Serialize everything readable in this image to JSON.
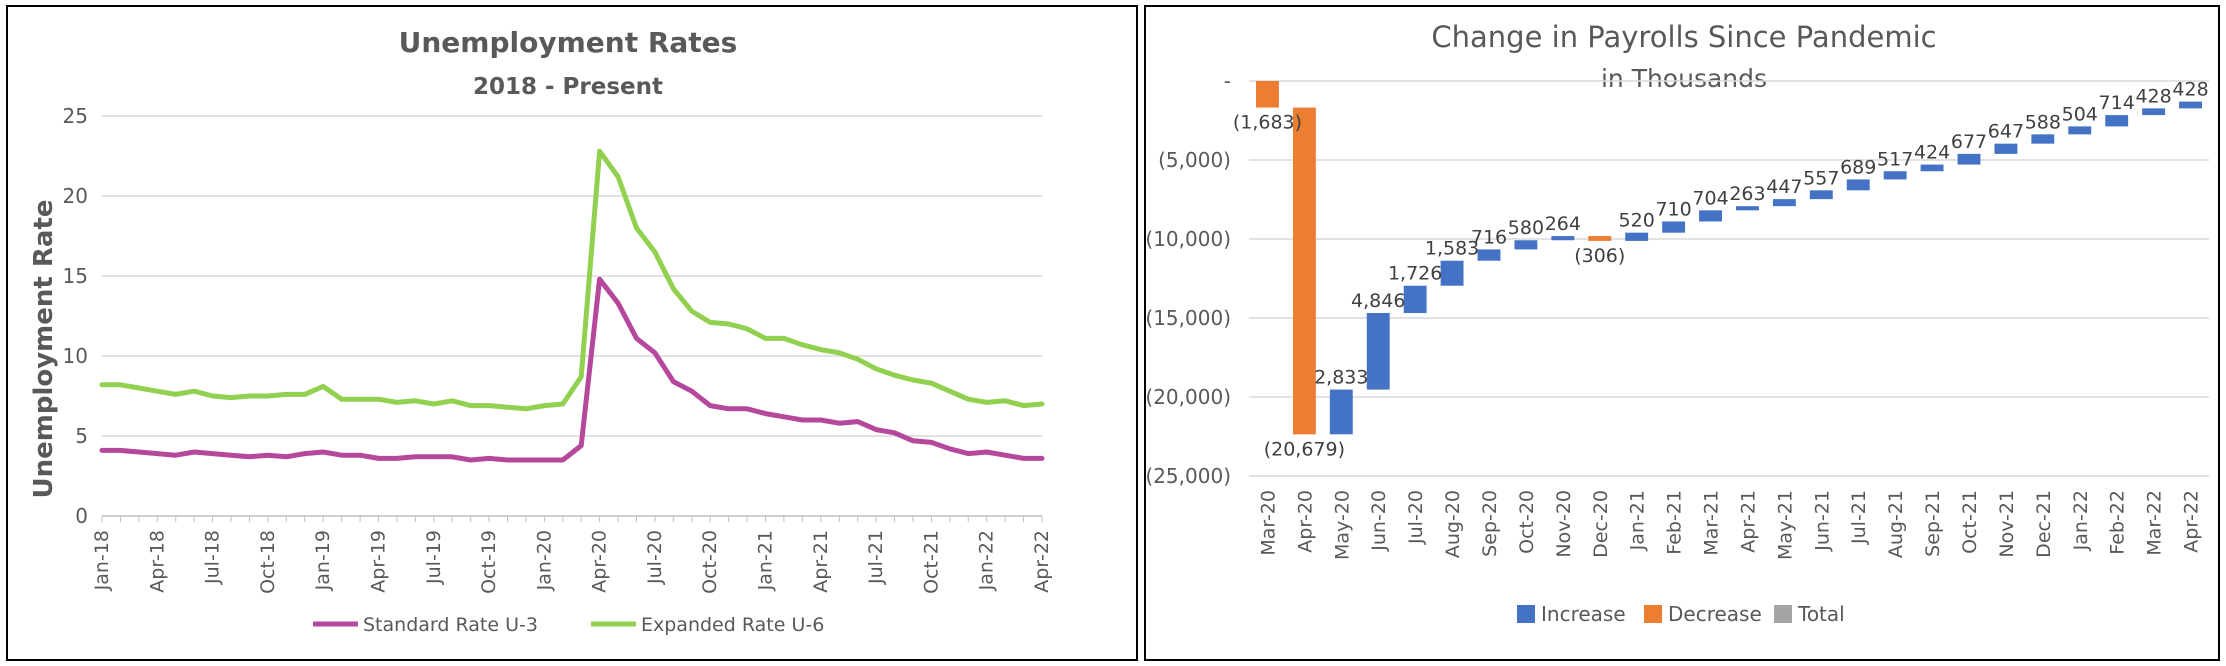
{
  "chart_data": [
    {
      "type": "line",
      "title": "Unemployment Rates",
      "subtitle": "2018 - Present",
      "ylabel": "Unemployment Rate",
      "xlabel": "",
      "ylim": [
        0,
        25
      ],
      "yticks": [
        "0",
        "5",
        "10",
        "15",
        "20",
        "25"
      ],
      "grid": true,
      "legend": "bottom",
      "x_tick_labels": [
        "Jan-18",
        "Apr-18",
        "Jul-18",
        "Oct-18",
        "Jan-19",
        "Apr-19",
        "Jul-19",
        "Oct-19",
        "Jan-20",
        "Apr-20",
        "Jul-20",
        "Oct-20",
        "Jan-21",
        "Apr-21",
        "Jul-21",
        "Oct-21",
        "Jan-22",
        "Apr-22"
      ],
      "x": [
        "Jan-18",
        "Feb-18",
        "Mar-18",
        "Apr-18",
        "May-18",
        "Jun-18",
        "Jul-18",
        "Aug-18",
        "Sep-18",
        "Oct-18",
        "Nov-18",
        "Dec-18",
        "Jan-19",
        "Feb-19",
        "Mar-19",
        "Apr-19",
        "May-19",
        "Jun-19",
        "Jul-19",
        "Aug-19",
        "Sep-19",
        "Oct-19",
        "Nov-19",
        "Dec-19",
        "Jan-20",
        "Feb-20",
        "Mar-20",
        "Apr-20",
        "May-20",
        "Jun-20",
        "Jul-20",
        "Aug-20",
        "Sep-20",
        "Oct-20",
        "Nov-20",
        "Dec-20",
        "Jan-21",
        "Feb-21",
        "Mar-21",
        "Apr-21",
        "May-21",
        "Jun-21",
        "Jul-21",
        "Aug-21",
        "Sep-21",
        "Oct-21",
        "Nov-21",
        "Dec-21",
        "Jan-22",
        "Feb-22",
        "Mar-22",
        "Apr-22"
      ],
      "series": [
        {
          "name": "Standard Rate U-3",
          "color": "#b5489d",
          "values": [
            4.1,
            4.1,
            4.0,
            3.9,
            3.8,
            4.0,
            3.9,
            3.8,
            3.7,
            3.8,
            3.7,
            3.9,
            4.0,
            3.8,
            3.8,
            3.6,
            3.6,
            3.7,
            3.7,
            3.7,
            3.5,
            3.6,
            3.5,
            3.5,
            3.5,
            3.5,
            4.4,
            14.8,
            13.3,
            11.1,
            10.2,
            8.4,
            7.8,
            6.9,
            6.7,
            6.7,
            6.4,
            6.2,
            6.0,
            6.0,
            5.8,
            5.9,
            5.4,
            5.2,
            4.7,
            4.6,
            4.2,
            3.9,
            4.0,
            3.8,
            3.6,
            3.6
          ]
        },
        {
          "name": "Expanded Rate U-6",
          "color": "#92d050",
          "values": [
            8.2,
            8.2,
            8.0,
            7.8,
            7.6,
            7.8,
            7.5,
            7.4,
            7.5,
            7.5,
            7.6,
            7.6,
            8.1,
            7.3,
            7.3,
            7.3,
            7.1,
            7.2,
            7.0,
            7.2,
            6.9,
            6.9,
            6.8,
            6.7,
            6.9,
            7.0,
            8.7,
            22.8,
            21.2,
            18.0,
            16.5,
            14.2,
            12.8,
            12.1,
            12.0,
            11.7,
            11.1,
            11.1,
            10.7,
            10.4,
            10.2,
            9.8,
            9.2,
            8.8,
            8.5,
            8.3,
            7.8,
            7.3,
            7.1,
            7.2,
            6.9,
            7.0
          ]
        }
      ]
    },
    {
      "type": "waterfall",
      "title": "Change in Payrolls Since Pandemic",
      "subtitle": "in Thousands",
      "ylim": [
        -25000,
        0
      ],
      "yticks": [
        "-",
        "(5,000)",
        "(10,000)",
        "(15,000)",
        "(20,000)",
        "(25,000)"
      ],
      "grid": true,
      "legend": "bottom",
      "legend_entries": [
        {
          "name": "Increase",
          "color": "#4472c4"
        },
        {
          "name": "Decrease",
          "color": "#ed7d31"
        },
        {
          "name": "Total",
          "color": "#a5a5a5"
        }
      ],
      "categories": [
        "Mar-20",
        "Apr-20",
        "May-20",
        "Jun-20",
        "Jul-20",
        "Aug-20",
        "Sep-20",
        "Oct-20",
        "Nov-20",
        "Dec-20",
        "Jan-21",
        "Feb-21",
        "Mar-21",
        "Apr-21",
        "May-21",
        "Jun-21",
        "Jul-21",
        "Aug-21",
        "Sep-21",
        "Oct-21",
        "Nov-21",
        "Dec-21",
        "Jan-22",
        "Feb-22",
        "Mar-22",
        "Apr-22"
      ],
      "values": [
        -1683,
        -20679,
        2833,
        4846,
        1726,
        1583,
        716,
        580,
        264,
        -306,
        520,
        710,
        704,
        263,
        447,
        557,
        689,
        517,
        424,
        677,
        647,
        588,
        504,
        714,
        428,
        428
      ],
      "labels": [
        "(1,683)",
        "(20,679)",
        "2,833",
        "4,846",
        "1,726",
        "1,583",
        "716",
        "580",
        "264",
        "(306)",
        "520",
        "710",
        "704",
        "263",
        "447",
        "557",
        "689",
        "517",
        "424",
        "677",
        "647",
        "588",
        "504",
        "714",
        "428",
        "428"
      ]
    }
  ]
}
